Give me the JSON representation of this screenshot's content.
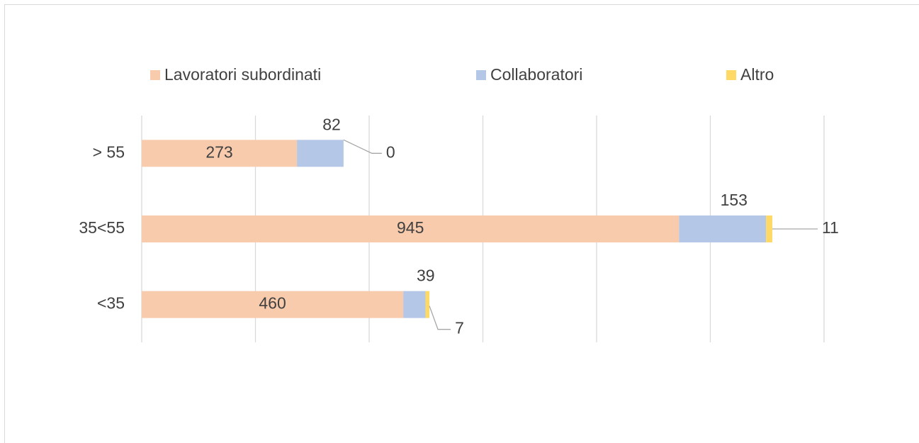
{
  "chart_data": {
    "type": "stacked-bar-horizontal",
    "categories": [
      "> 55",
      "35<55",
      "<35"
    ],
    "series": [
      {
        "name": "Lavoratori subordinati",
        "color": "#f8cbad",
        "values": [
          273,
          945,
          460
        ]
      },
      {
        "name": "Collaboratori",
        "color": "#b4c7e7",
        "values": [
          82,
          153,
          39
        ]
      },
      {
        "name": "Altro",
        "color": "#ffd966",
        "values": [
          0,
          11,
          7
        ]
      }
    ],
    "xlim": [
      0,
      1200
    ],
    "xticks": [
      0,
      200,
      400,
      600,
      800,
      1000,
      1200
    ],
    "grid": true,
    "legend": "top"
  }
}
